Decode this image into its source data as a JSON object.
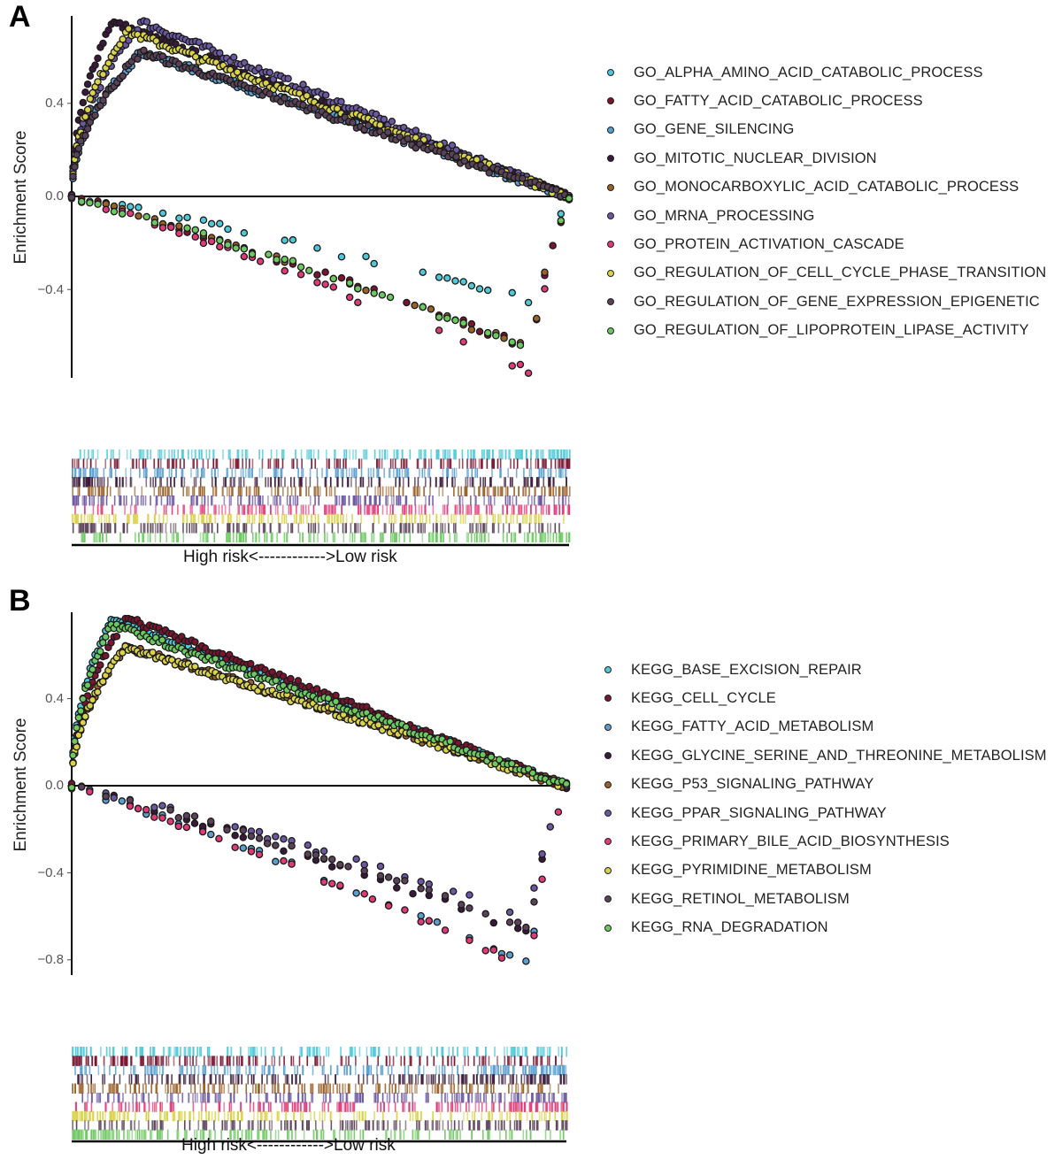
{
  "chart_data": [
    {
      "panel": "A",
      "type": "scatter",
      "title": "",
      "xlabel": "High risk<------------>Low risk",
      "ylabel": "Enrichment Score",
      "yticks": [
        0.4,
        0.0,
        -0.4
      ],
      "ytick_labels": [
        "0.4",
        "0.0",
        "−0.4"
      ],
      "ylim": [
        -0.78,
        0.78
      ],
      "xlim": [
        0,
        1
      ],
      "legend_position": "right",
      "series": [
        {
          "name": "GO_ALPHA_AMINO_ACID_CATABOLIC_PROCESS",
          "color": "#4fc9d8",
          "peak_es": -0.45,
          "direction": "negative"
        },
        {
          "name": "GO_FATTY_ACID_CATABOLIC_PROCESS",
          "color": "#7a1530",
          "peak_es": -0.66,
          "direction": "negative"
        },
        {
          "name": "GO_GENE_SILENCING",
          "color": "#5b9fd0",
          "peak_es": 0.62,
          "direction": "positive"
        },
        {
          "name": "GO_MITOTIC_NUCLEAR_DIVISION",
          "color": "#3a1a3a",
          "peak_es": 0.75,
          "direction": "positive"
        },
        {
          "name": "GO_MONOCARBOXYLIC_ACID_CATABOLIC_PROCESS",
          "color": "#9a6228",
          "peak_es": -0.66,
          "direction": "negative"
        },
        {
          "name": "GO_MRNA_PROCESSING",
          "color": "#6b58a0",
          "peak_es": 0.75,
          "direction": "positive"
        },
        {
          "name": "GO_PROTEIN_ACTIVATION_CASCADE",
          "color": "#e03a78",
          "peak_es": -0.76,
          "direction": "negative"
        },
        {
          "name": "GO_REGULATION_OF_CELL_CYCLE_PHASE_TRANSITION",
          "color": "#d9d24a",
          "peak_es": 0.71,
          "direction": "positive"
        },
        {
          "name": "GO_REGULATION_OF_GENE_EXPRESSION_EPIGENETIC",
          "color": "#5a4258",
          "peak_es": 0.62,
          "direction": "positive"
        },
        {
          "name": "GO_REGULATION_OF_LIPOPROTEIN_LIPASE_ACTIVITY",
          "color": "#6cc860",
          "peak_es": -0.66,
          "direction": "negative"
        }
      ]
    },
    {
      "panel": "B",
      "type": "scatter",
      "title": "",
      "xlabel": "High risk<------------>Low risk",
      "ylabel": "Enrichment Score",
      "yticks": [
        0.4,
        0.0,
        -0.4,
        -0.8
      ],
      "ytick_labels": [
        "0.4",
        "0.0",
        "−0.4",
        "−0.8"
      ],
      "ylim": [
        -0.86,
        0.78
      ],
      "xlim": [
        0,
        1
      ],
      "legend_position": "right",
      "series": [
        {
          "name": "KEGG_BASE_EXCISION_REPAIR",
          "color": "#4fc9d8",
          "peak_es": 0.77,
          "direction": "positive"
        },
        {
          "name": "KEGG_CELL_CYCLE",
          "color": "#7a1530",
          "peak_es": 0.77,
          "direction": "positive"
        },
        {
          "name": "KEGG_FATTY_ACID_METABOLISM",
          "color": "#5b9fd0",
          "peak_es": -0.83,
          "direction": "negative"
        },
        {
          "name": "KEGG_GLYCINE_SERINE_AND_THREONINE_METABOLISM",
          "color": "#3a1a3a",
          "peak_es": -0.68,
          "direction": "negative"
        },
        {
          "name": "KEGG_P53_SIGNALING_PATHWAY",
          "color": "#9a6228",
          "peak_es": 0.64,
          "direction": "positive"
        },
        {
          "name": "KEGG_PPAR_SIGNALING_PATHWAY",
          "color": "#6b58a0",
          "peak_es": -0.6,
          "direction": "negative"
        },
        {
          "name": "KEGG_PRIMARY_BILE_ACID_BIOSYNTHESIS",
          "color": "#e03a78",
          "peak_es": -0.84,
          "direction": "negative"
        },
        {
          "name": "KEGG_PYRIMIDINE_METABOLISM",
          "color": "#d9d24a",
          "peak_es": 0.64,
          "direction": "positive"
        },
        {
          "name": "KEGG_RETINOL_METABOLISM",
          "color": "#5a4258",
          "peak_es": -0.65,
          "direction": "negative"
        },
        {
          "name": "KEGG_RNA_DEGRADATION",
          "color": "#6cc860",
          "peak_es": 0.74,
          "direction": "positive"
        }
      ]
    }
  ],
  "panels": [
    {
      "letter": "A",
      "ylabel": "Enrichment Score",
      "xlabel": "High risk<------------>Low risk",
      "ticks": [
        {
          "label": "0.4",
          "value": 0.4
        },
        {
          "label": "0.0",
          "value": 0.0
        },
        {
          "label": "−0.4",
          "value": -0.4
        }
      ],
      "legend": [
        {
          "label": "GO_ALPHA_AMINO_ACID_CATABOLIC_PROCESS",
          "color": "#4fc9d8"
        },
        {
          "label": "GO_FATTY_ACID_CATABOLIC_PROCESS",
          "color": "#7a1530"
        },
        {
          "label": "GO_GENE_SILENCING",
          "color": "#5b9fd0"
        },
        {
          "label": "GO_MITOTIC_NUCLEAR_DIVISION",
          "color": "#3a1a3a"
        },
        {
          "label": "GO_MONOCARBOXYLIC_ACID_CATABOLIC_PROCESS",
          "color": "#9a6228"
        },
        {
          "label": "GO_MRNA_PROCESSING",
          "color": "#6b58a0"
        },
        {
          "label": "GO_PROTEIN_ACTIVATION_CASCADE",
          "color": "#e03a78"
        },
        {
          "label": "GO_REGULATION_OF_CELL_CYCLE_PHASE_TRANSITION",
          "color": "#d9d24a"
        },
        {
          "label": "GO_REGULATION_OF_GENE_EXPRESSION_EPIGENETIC",
          "color": "#5a4258"
        },
        {
          "label": "GO_REGULATION_OF_LIPOPROTEIN_LIPASE_ACTIVITY",
          "color": "#6cc860"
        }
      ]
    },
    {
      "letter": "B",
      "ylabel": "Enrichment Score",
      "xlabel": "High risk<------------>Low risk",
      "ticks": [
        {
          "label": "0.4",
          "value": 0.4
        },
        {
          "label": "0.0",
          "value": 0.0
        },
        {
          "label": "−0.4",
          "value": -0.4
        },
        {
          "label": "−0.8",
          "value": -0.8
        }
      ],
      "legend": [
        {
          "label": "KEGG_BASE_EXCISION_REPAIR",
          "color": "#4fc9d8"
        },
        {
          "label": "KEGG_CELL_CYCLE",
          "color": "#7a1530"
        },
        {
          "label": "KEGG_FATTY_ACID_METABOLISM",
          "color": "#5b9fd0"
        },
        {
          "label": "KEGG_GLYCINE_SERINE_AND_THREONINE_METABOLISM",
          "color": "#3a1a3a"
        },
        {
          "label": "KEGG_P53_SIGNALING_PATHWAY",
          "color": "#9a6228"
        },
        {
          "label": "KEGG_PPAR_SIGNALING_PATHWAY",
          "color": "#6b58a0"
        },
        {
          "label": "KEGG_PRIMARY_BILE_ACID_BIOSYNTHESIS",
          "color": "#e03a78"
        },
        {
          "label": "KEGG_PYRIMIDINE_METABOLISM",
          "color": "#d9d24a"
        },
        {
          "label": "KEGG_RETINOL_METABOLISM",
          "color": "#5a4258"
        },
        {
          "label": "KEGG_RNA_DEGRADATION",
          "color": "#6cc860"
        }
      ]
    }
  ]
}
